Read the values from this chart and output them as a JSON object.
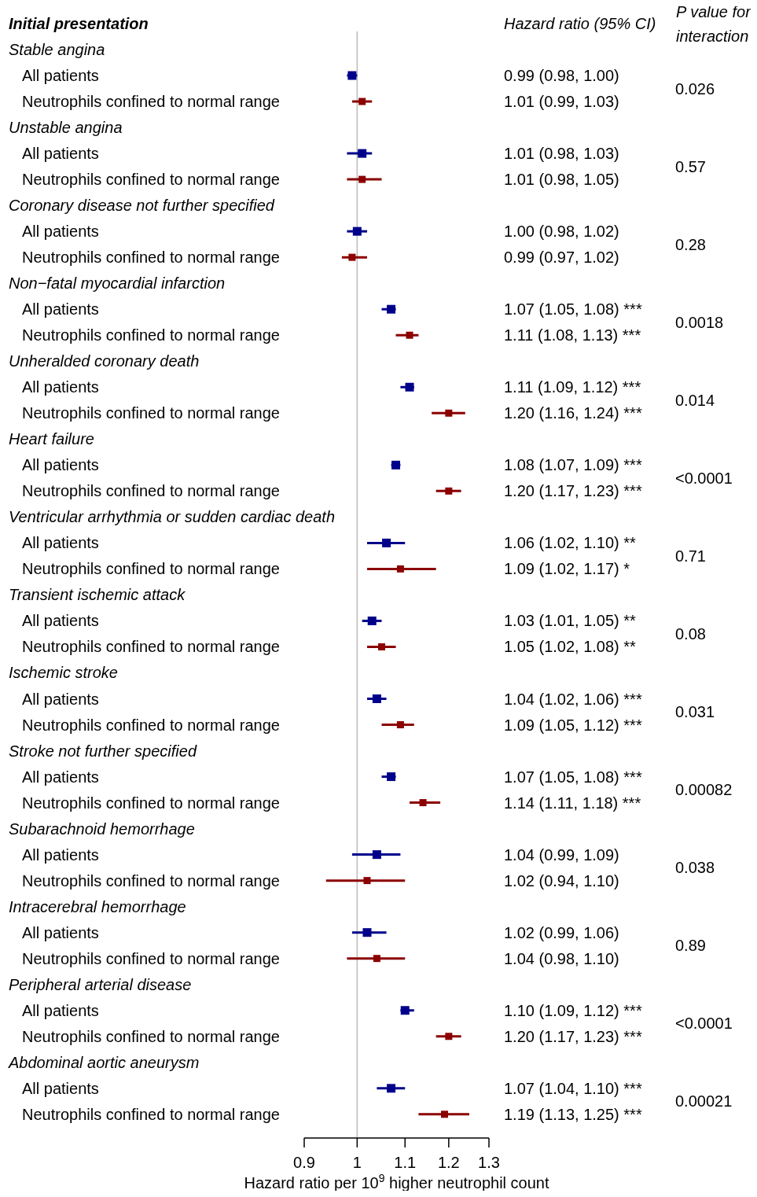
{
  "chart_data": {
    "type": "scatter",
    "orientation": "horizontal",
    "log": "x",
    "marker": "square",
    "xlabel": "Hazard ratio per 10$^{9}$ higher neutrophil count",
    "xlim": [
      0.9,
      1.3
    ],
    "xticks": [
      0.9,
      1,
      1.1,
      1.2,
      1.3
    ],
    "categories": [
      null,
      "All patients",
      "Neutrophils confined to normal range",
      null,
      "All patients",
      "Neutrophils confined to normal range",
      null,
      "All patients",
      "Neutrophils confined to normal range",
      null,
      "All patients",
      "Neutrophils confined to normal range",
      null,
      "All patients",
      "Neutrophils confined to normal range",
      null,
      "All patients",
      "Neutrophils confined to normal range",
      null,
      "All patients",
      "Neutrophils confined to normal range",
      null,
      "All patients",
      "Neutrophils confined to normal range",
      null,
      "All patients",
      "Neutrophils confined to normal range",
      null,
      "All patients",
      "Neutrophils confined to normal range",
      null,
      "All patients",
      "Neutrophils confined to normal range",
      null,
      "All patients",
      "Neutrophils confined to normal range",
      null,
      "All patients",
      "Neutrophils confined to normal range",
      null,
      "All patients",
      "Neutrophils confined to normal range"
    ],
    "series": [
      {
        "color": "#00008b",
        "values": [
          null,
          0.99,
          null,
          null,
          1.01,
          null,
          null,
          1.0,
          null,
          null,
          1.07,
          null,
          null,
          1.11,
          null,
          null,
          1.08,
          null,
          null,
          1.06,
          null,
          null,
          1.03,
          null,
          null,
          1.04,
          null,
          null,
          1.07,
          null,
          null,
          1.04,
          null,
          null,
          1.02,
          null,
          null,
          1.1,
          null,
          null,
          1.07,
          null
        ],
        "errors": [
          null,
          [
            0.98,
            1.0
          ],
          null,
          null,
          [
            0.98,
            1.03
          ],
          null,
          null,
          [
            0.98,
            1.02
          ],
          null,
          null,
          [
            1.05,
            1.08
          ],
          null,
          null,
          [
            1.09,
            1.12
          ],
          null,
          null,
          [
            1.07,
            1.09
          ],
          null,
          null,
          [
            1.02,
            1.1
          ],
          null,
          null,
          [
            1.01,
            1.05
          ],
          null,
          null,
          [
            1.02,
            1.06
          ],
          null,
          null,
          [
            1.05,
            1.08
          ],
          null,
          null,
          [
            0.99,
            1.09
          ],
          null,
          null,
          [
            0.99,
            1.06
          ],
          null,
          null,
          [
            1.09,
            1.12
          ],
          null,
          null,
          [
            1.04,
            1.1
          ],
          null
        ]
      },
      {
        "color": "#8b0000",
        "values": [
          null,
          null,
          1.01,
          null,
          null,
          1.01,
          null,
          null,
          0.99,
          null,
          null,
          1.11,
          null,
          null,
          1.2,
          null,
          null,
          1.2,
          null,
          null,
          1.09,
          null,
          null,
          1.05,
          null,
          null,
          1.09,
          null,
          null,
          1.14,
          null,
          null,
          1.02,
          null,
          null,
          1.04,
          null,
          null,
          1.2,
          null,
          null,
          1.19
        ],
        "errors": [
          null,
          null,
          [
            0.99,
            1.03
          ],
          null,
          null,
          [
            0.98,
            1.05
          ],
          null,
          null,
          [
            0.97,
            1.02
          ],
          null,
          null,
          [
            1.08,
            1.13
          ],
          null,
          null,
          [
            1.16,
            1.24
          ],
          null,
          null,
          [
            1.17,
            1.23
          ],
          null,
          null,
          [
            1.02,
            1.17
          ],
          null,
          null,
          [
            1.02,
            1.08
          ],
          null,
          null,
          [
            1.05,
            1.12
          ],
          null,
          null,
          [
            1.11,
            1.18
          ],
          null,
          null,
          [
            0.94,
            1.1
          ],
          null,
          null,
          [
            0.98,
            1.1
          ],
          null,
          null,
          [
            1.17,
            1.23
          ],
          null,
          null,
          [
            1.13,
            1.25
          ]
        ]
      }
    ],
    "ref_lines": [
      {
        "axis": "x",
        "value": 1,
        "color": "#bbbbbb"
      }
    ],
    "annotations": [
      "Initial presentation",
      "Hazard ratio (95% CI)",
      "P value for\ninteraction",
      "Stable angina",
      "0.99 (0.98, 1.00)",
      "1.01 (0.99, 1.03)",
      "0.026",
      "Unstable angina",
      "1.01 (0.98, 1.03)",
      "1.01 (0.98, 1.05)",
      "0.57",
      "Coronary disease not further specified",
      "1.00 (0.98, 1.02)",
      "0.99 (0.97, 1.02)",
      "0.28",
      "Non−fatal myocardial infarction",
      "1.07 (1.05, 1.08) ***",
      "1.11 (1.08, 1.13) ***",
      "0.0018",
      "Unheralded coronary death",
      "1.11 (1.09, 1.12) ***",
      "1.20 (1.16, 1.24) ***",
      "0.014",
      "Heart failure",
      "1.08 (1.07, 1.09) ***",
      "1.20 (1.17, 1.23) ***",
      "<0.0001",
      "Ventricular arrhythmia or sudden cardiac death",
      "1.06 (1.02, 1.10) **",
      "1.09 (1.02, 1.17) *",
      "0.71",
      "Transient ischemic attack",
      "1.03 (1.01, 1.05) **",
      "1.05 (1.02, 1.08) **",
      "0.08",
      "Ischemic stroke",
      "1.04 (1.02, 1.06) ***",
      "1.09 (1.05, 1.12) ***",
      "0.031",
      "Stroke not further specified",
      "1.07 (1.05, 1.08) ***",
      "1.14 (1.11, 1.18) ***",
      "0.00082",
      "Subarachnoid hemorrhage",
      "1.04 (0.99, 1.09)",
      "1.02 (0.94, 1.10)",
      "0.038",
      "Intracerebral hemorrhage",
      "1.02 (0.99, 1.06)",
      "1.04 (0.98, 1.10)",
      "0.89",
      "Peripheral arterial disease",
      "1.10 (1.09, 1.12) ***",
      "1.20 (1.17, 1.23) ***",
      "<0.0001",
      "Abdominal aortic aneurysm",
      "1.07 (1.04, 1.10) ***",
      "1.19 (1.13, 1.25) ***",
      "0.00021"
    ]
  }
}
